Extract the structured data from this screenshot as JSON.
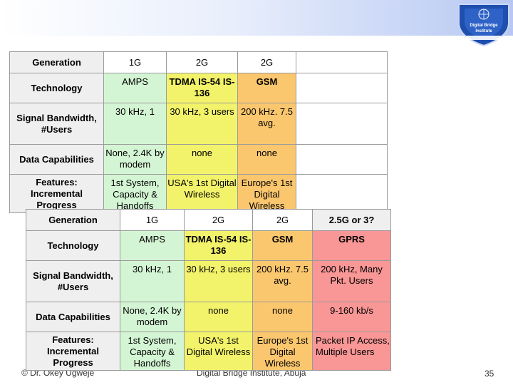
{
  "logo": {
    "line1": "Digital Bridge",
    "line2": "Institute",
    "icon": "shield-logo-icon"
  },
  "back_table": {
    "rows": [
      {
        "label": "Generation",
        "cells": [
          "1G",
          "2G",
          "2G"
        ]
      },
      {
        "label": "Technology",
        "cells": [
          "AMPS",
          "TDMA IS-54 IS-136",
          "GSM"
        ]
      },
      {
        "label": "Signal Bandwidth, #Users",
        "cells": [
          "30 kHz, 1",
          "30 kHz, 3 users",
          "200 kHz. 7.5 avg."
        ]
      },
      {
        "label": "Data Capabilities",
        "cells": [
          "None, 2.4K by modem",
          "none",
          "none"
        ]
      },
      {
        "label": "Features: Incremental Progress",
        "cells": [
          "1st System, Capacity & Handoffs",
          "USA's 1st Digital Wireless",
          "Europe's 1st Digital Wireless"
        ]
      }
    ]
  },
  "front_table": {
    "rows": [
      {
        "label": "Generation",
        "cells": [
          "1G",
          "2G",
          "2G",
          "2.5G or 3?"
        ]
      },
      {
        "label": "Technology",
        "cells": [
          "AMPS",
          "TDMA IS-54 IS-136",
          "GSM",
          "GPRS"
        ]
      },
      {
        "label": "Signal Bandwidth, #Users",
        "cells": [
          "30 kHz, 1",
          "30 kHz, 3 users",
          "200 kHz. 7.5 avg.",
          "200 kHz, Many Pkt. Users"
        ]
      },
      {
        "label": "Data Capabilities",
        "cells": [
          "None, 2.4K by modem",
          "none",
          "none",
          "9-160 kb/s"
        ]
      },
      {
        "label": "Features: Incremental Progress",
        "cells": [
          "1st System, Capacity & Handoffs",
          "USA's 1st Digital Wireless",
          "Europe's 1st Digital Wireless",
          "Packet IP Access, Multiple Users"
        ]
      }
    ]
  },
  "footer": {
    "left": "© Dr. Okey Ugweje",
    "center": "Digital Bridge Institute, Abuja",
    "page_number": "35"
  }
}
